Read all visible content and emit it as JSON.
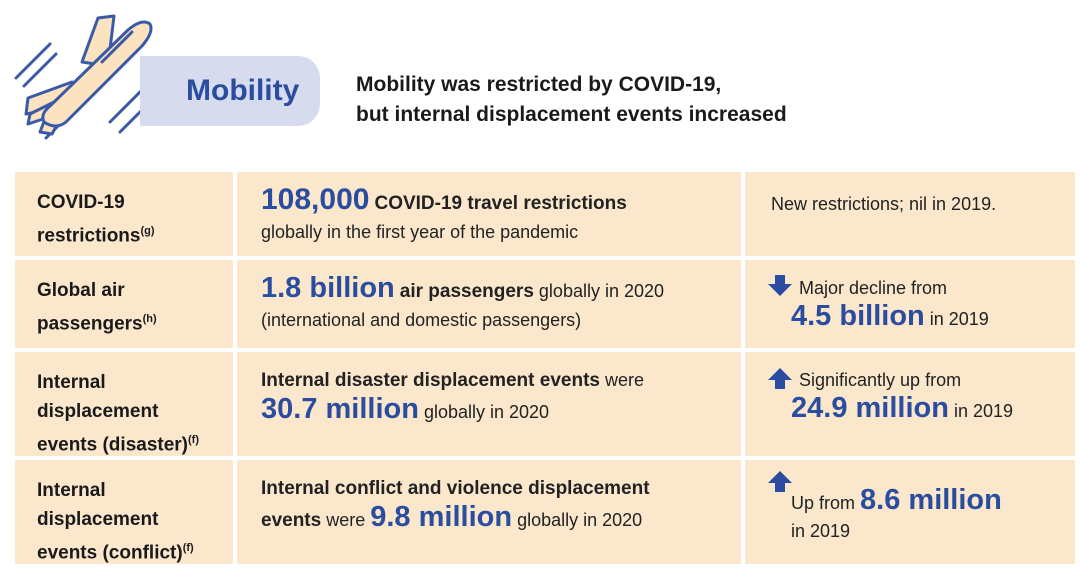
{
  "header": {
    "badge_label": "Mobility",
    "heading_line1": "Mobility was restricted by COVID-19,",
    "heading_line2": "but internal displacement events increased"
  },
  "rows": [
    {
      "label": "COVID-19 restrictions",
      "label_line1": "COVID-19",
      "label_line2": "restrictions",
      "footnote": "(g)",
      "main_big": "108,000",
      "main_bold": "COVID-19 travel restrictions",
      "main_rest": "globally in the first year of the pandemic",
      "trend_text": "New restrictions; nil in 2019."
    },
    {
      "label_line1": "Global air",
      "label_line2": "passengers",
      "footnote": "(h)",
      "main_big": "1.8 billion",
      "main_bold": "air passengers",
      "main_rest1": "globally in 2020",
      "main_rest2": "(international and domestic passengers)",
      "trend_direction": "down",
      "trend_text": "Major decline from",
      "trend_value": "4.5 billion",
      "trend_year": "in 2019"
    },
    {
      "label_line1": "Internal",
      "label_line2": "displacement",
      "label_line3": "events (disaster)",
      "footnote": "(f)",
      "main_bold": "Internal disaster displacement events",
      "main_rest1": "were",
      "main_big": "30.7 million",
      "main_rest2": "globally in 2020",
      "trend_direction": "up",
      "trend_text": "Significantly up from",
      "trend_value": "24.9 million",
      "trend_year": "in 2019"
    },
    {
      "label_line1": "Internal",
      "label_line2": "displacement",
      "label_line3": "events (conflict)",
      "footnote": "(f)",
      "main_bold1": "Internal conflict and violence displacement",
      "main_bold2": "events",
      "main_rest1": "were",
      "main_big": "9.8 million",
      "main_rest2": "globally in 2020",
      "trend_direction": "up",
      "trend_text": "Up from",
      "trend_value": "8.6 million",
      "trend_year": "in 2019"
    }
  ],
  "colors": {
    "accent_blue": "#2b4da0",
    "cell_bg": "#fbe7cc",
    "badge_bg": "#d6dbee",
    "plane_fill": "#fbe3bf",
    "plane_stroke": "#3a5aa8"
  },
  "icons": {
    "header_icon": "airplane-icon",
    "down": "arrow-down-icon",
    "up": "arrow-up-icon"
  }
}
